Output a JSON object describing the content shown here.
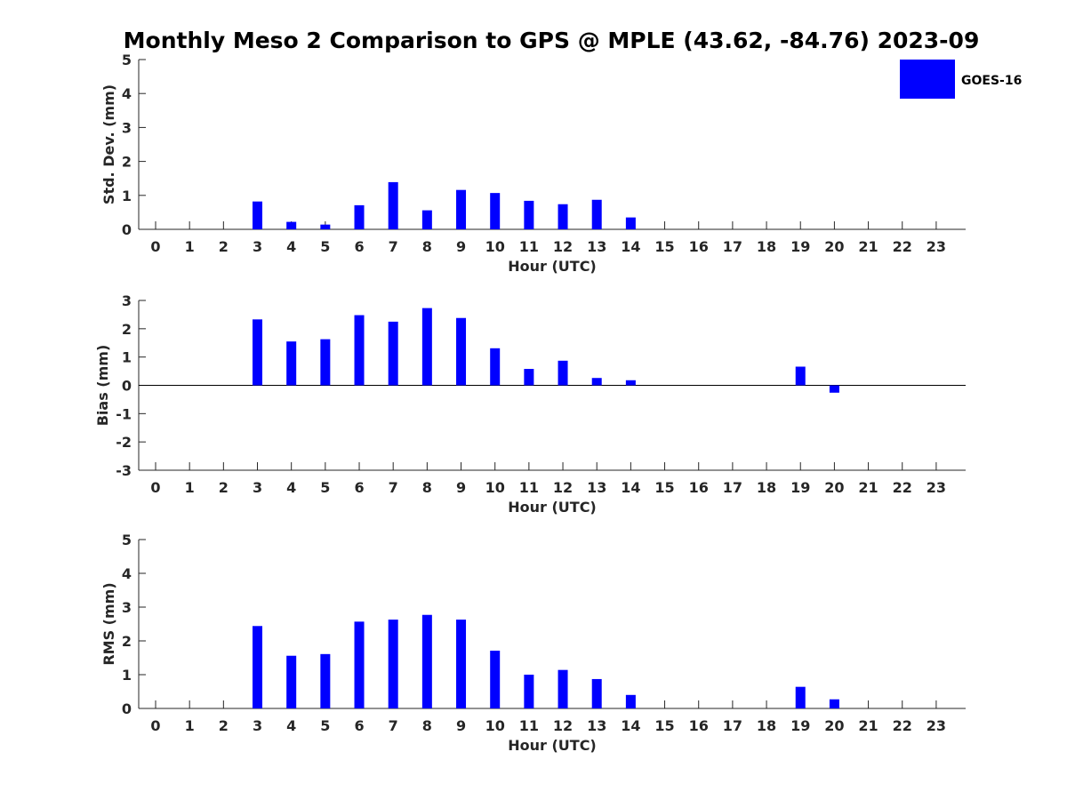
{
  "title": "Monthly Meso 2 Comparison to GPS @ MPLE (43.62, -84.76) 2023-09",
  "colors": {
    "bar": "#0000ff",
    "axis": "#262626"
  },
  "legend": {
    "label": "GOES-16",
    "placement": "top-right"
  },
  "chart_data": [
    {
      "type": "bar",
      "name": "std",
      "ylabel": "Std. Dev. (mm)",
      "xlabel": "Hour (UTC)",
      "ylim": [
        0,
        5
      ],
      "yticks": [
        0,
        1,
        2,
        3,
        4,
        5
      ],
      "categories": [
        0,
        1,
        2,
        3,
        4,
        5,
        6,
        7,
        8,
        9,
        10,
        11,
        12,
        13,
        14,
        15,
        16,
        17,
        18,
        19,
        20,
        21,
        22,
        23
      ],
      "series": [
        {
          "name": "GOES-16",
          "values": [
            null,
            null,
            null,
            0.82,
            0.22,
            0.14,
            0.71,
            1.39,
            0.56,
            1.16,
            1.07,
            0.84,
            0.74,
            0.87,
            0.35,
            null,
            null,
            null,
            null,
            null,
            null,
            null,
            null,
            null
          ]
        }
      ],
      "zero_line": false,
      "grid": false
    },
    {
      "type": "bar",
      "name": "bias",
      "ylabel": "Bias (mm)",
      "xlabel": "Hour (UTC)",
      "ylim": [
        -3,
        3
      ],
      "yticks": [
        -3,
        -2,
        -1,
        0,
        1,
        2,
        3
      ],
      "categories": [
        0,
        1,
        2,
        3,
        4,
        5,
        6,
        7,
        8,
        9,
        10,
        11,
        12,
        13,
        14,
        15,
        16,
        17,
        18,
        19,
        20,
        21,
        22,
        23
      ],
      "series": [
        {
          "name": "GOES-16",
          "values": [
            null,
            null,
            null,
            2.33,
            1.55,
            1.63,
            2.48,
            2.25,
            2.73,
            2.38,
            1.31,
            0.58,
            0.87,
            0.26,
            0.18,
            null,
            null,
            null,
            null,
            0.66,
            -0.26,
            null,
            null,
            null
          ]
        }
      ],
      "zero_line": true,
      "grid": false
    },
    {
      "type": "bar",
      "name": "rms",
      "ylabel": "RMS (mm)",
      "xlabel": "Hour (UTC)",
      "ylim": [
        0,
        5
      ],
      "yticks": [
        0,
        1,
        2,
        3,
        4,
        5
      ],
      "categories": [
        0,
        1,
        2,
        3,
        4,
        5,
        6,
        7,
        8,
        9,
        10,
        11,
        12,
        13,
        14,
        15,
        16,
        17,
        18,
        19,
        20,
        21,
        22,
        23
      ],
      "series": [
        {
          "name": "GOES-16",
          "values": [
            null,
            null,
            null,
            2.44,
            1.56,
            1.61,
            2.57,
            2.63,
            2.77,
            2.63,
            1.71,
            1.0,
            1.14,
            0.87,
            0.4,
            null,
            null,
            null,
            null,
            0.64,
            0.27,
            null,
            null,
            null
          ]
        }
      ],
      "zero_line": false,
      "grid": false
    }
  ]
}
